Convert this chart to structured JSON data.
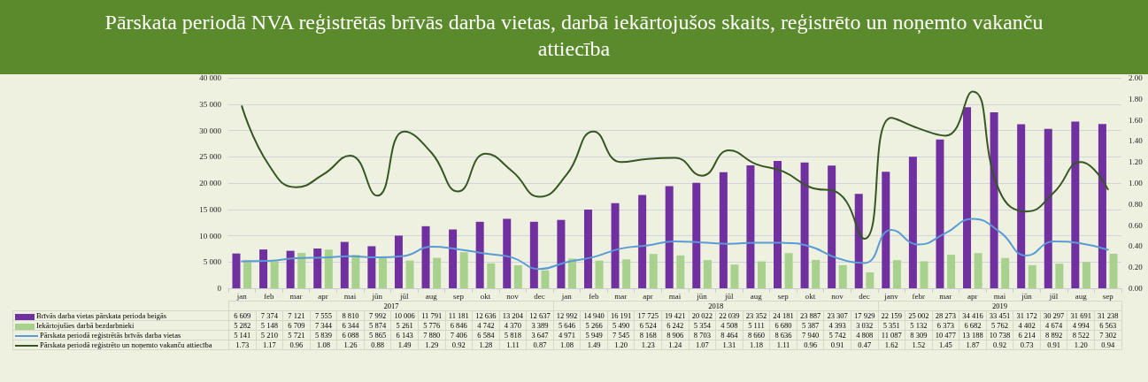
{
  "chart_data": {
    "type": "bar",
    "title": "Pārskata periodā NVA reģistrētās brīvās darba vietas, darbā iekārtojušos skaits, reģistrēto un noņemto vakanču attiecība",
    "categories": [
      "jan",
      "feb",
      "mar",
      "apr",
      "mai",
      "jūn",
      "jūl",
      "aug",
      "sep",
      "okt",
      "nov",
      "dec",
      "jan",
      "feb",
      "mar",
      "apr",
      "mai",
      "jūn",
      "jūl",
      "aug",
      "sep",
      "okt",
      "nov",
      "dec",
      "janv",
      "febr",
      "mar",
      "apr",
      "mai",
      "jūn",
      "jūl",
      "aug",
      "sep"
    ],
    "annotations": [
      "2017",
      "2018",
      "2019"
    ],
    "series": [
      {
        "name": "Brīvās darba vietas pārskata perioda beigās",
        "color": "#7030a0",
        "values": [
          6609,
          7374,
          7121,
          7555,
          8810,
          7992,
          10006,
          11791,
          11181,
          12636,
          13204,
          12637,
          12992,
          14940,
          16191,
          17725,
          19421,
          20022,
          22039,
          23352,
          24181,
          23887,
          23307,
          17929,
          22159,
          25002,
          28273,
          34416,
          33451,
          31172,
          30297,
          31691,
          31238
        ],
        "value_labels": [
          "6 609",
          "7 374",
          "7 121",
          "7 555",
          "8 810",
          "7 992",
          "10 006",
          "11 791",
          "11 181",
          "12 636",
          "13 204",
          "12 637",
          "12 992",
          "14 940",
          "16 191",
          "17 725",
          "19 421",
          "20 022",
          "22 039",
          "23 352",
          "24 181",
          "23 887",
          "23 307",
          "17 929",
          "22 159",
          "25 002",
          "28 273",
          "34 416",
          "33 451",
          "31 172",
          "30 297",
          "31 691",
          "31 238"
        ]
      },
      {
        "name": "Iekārtojušies darbā bezdarbnieki",
        "color": "#a9d18e",
        "values": [
          5282,
          5148,
          6709,
          7344,
          6344,
          5874,
          5261,
          5776,
          6846,
          4742,
          4370,
          3389,
          5646,
          5266,
          5490,
          6524,
          6242,
          5354,
          4508,
          5111,
          6680,
          5387,
          4393,
          3032,
          5351,
          5132,
          6373,
          6682,
          5762,
          4402,
          4674,
          4994,
          6563
        ],
        "value_labels": [
          "5 282",
          "5 148",
          "6 709",
          "7 344",
          "6 344",
          "5 874",
          "5 261",
          "5 776",
          "6 846",
          "4 742",
          "4 370",
          "3 389",
          "5 646",
          "5 266",
          "5 490",
          "6 524",
          "6 242",
          "5 354",
          "4 508",
          "5 111",
          "6 680",
          "5 387",
          "4 393",
          "3 032",
          "5 351",
          "5 132",
          "6 373",
          "6 682",
          "5 762",
          "4 402",
          "4 674",
          "4 994",
          "6 563"
        ]
      },
      {
        "name": "Pārskata periodā reģistrētās brīvās darba vietas",
        "type": "line",
        "color": "#5b9bd5",
        "values": [
          5141,
          5210,
          5721,
          5839,
          6088,
          5865,
          6143,
          7880,
          7406,
          6584,
          5818,
          3647,
          4971,
          5949,
          7545,
          8168,
          8906,
          8703,
          8464,
          8660,
          8636,
          7940,
          5742,
          4808,
          11087,
          8309,
          10477,
          13188,
          10738,
          6214,
          8892,
          8522,
          7302
        ],
        "value_labels": [
          "5 141",
          "5 210",
          "5 721",
          "5 839",
          "6 088",
          "5 865",
          "6 143",
          "7 880",
          "7 406",
          "6 584",
          "5 818",
          "3 647",
          "4 971",
          "5 949",
          "7 545",
          "8 168",
          "8 906",
          "8 703",
          "8 464",
          "8 660",
          "8 636",
          "7 940",
          "5 742",
          "4 808",
          "11 087",
          "8 309",
          "10 477",
          "13 188",
          "10 738",
          "6 214",
          "8 892",
          "8 522",
          "7 302"
        ]
      },
      {
        "name": "Pārskata periodā reģistrēto un noņemto vakanču attiecība",
        "type": "line",
        "axis": "y2",
        "color": "#375623",
        "values": [
          1.73,
          1.17,
          0.96,
          1.08,
          1.26,
          0.88,
          1.49,
          1.29,
          0.92,
          1.28,
          1.11,
          0.87,
          1.08,
          1.49,
          1.2,
          1.23,
          1.24,
          1.07,
          1.31,
          1.18,
          1.11,
          0.96,
          0.91,
          0.47,
          1.62,
          1.52,
          1.45,
          1.87,
          0.92,
          0.73,
          0.91,
          1.2,
          0.94
        ],
        "value_labels": [
          "1.73",
          "1.17",
          "0.96",
          "1.08",
          "1.26",
          "0.88",
          "1.49",
          "1.29",
          "0.92",
          "1.28",
          "1.11",
          "0.87",
          "1.08",
          "1.49",
          "1.20",
          "1.23",
          "1.24",
          "1.07",
          "1.31",
          "1.18",
          "1.11",
          "0.96",
          "0.91",
          "0.47",
          "1.62",
          "1.52",
          "1.45",
          "1.87",
          "0.92",
          "0.73",
          "0.91",
          "1.20",
          "0.94"
        ]
      }
    ],
    "ylim": [
      0,
      40000
    ],
    "yticks": [
      0,
      {
        "value": 5000,
        "label": "5 000"
      },
      {
        "value": 10000,
        "label": "10 000"
      },
      {
        "value": 15000,
        "label": "15 000"
      },
      {
        "value": 20000,
        "label": "20 000"
      },
      {
        "value": 25000,
        "label": "25 000"
      },
      {
        "value": 30000,
        "label": "30 000"
      },
      {
        "value": 35000,
        "label": "35 000"
      },
      {
        "value": 40000,
        "label": "40 000"
      }
    ],
    "y2lim": [
      0,
      2
    ],
    "y2ticks": [
      {
        "value": 0,
        "label": "0.00"
      },
      {
        "value": 0.2,
        "label": "0.20"
      },
      {
        "value": 0.4,
        "label": "0.40"
      },
      {
        "value": 0.6,
        "label": "0.60"
      },
      {
        "value": 0.8,
        "label": "0.80"
      },
      {
        "value": 1,
        "label": "1.00"
      },
      {
        "value": 1.2,
        "label": "1.20"
      },
      {
        "value": 1.4,
        "label": "1.40"
      },
      {
        "value": 1.6,
        "label": "1.60"
      },
      {
        "value": 1.8,
        "label": "1.80"
      },
      {
        "value": 2,
        "label": "2.00"
      }
    ],
    "grid": "y",
    "legend": "bottom",
    "marker": "none",
    "line_style": "solid"
  }
}
